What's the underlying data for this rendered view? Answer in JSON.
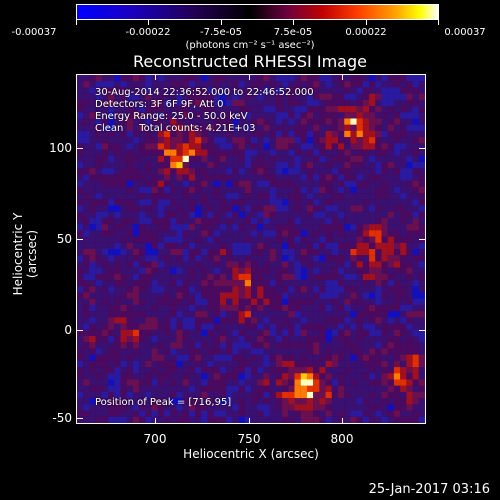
{
  "colorbar": {
    "tick_labels": [
      "-0.00037",
      "-0.00022",
      "-7.5e-05",
      "7.5e-05",
      "0.00022",
      "0.00037"
    ],
    "units": "(photons cm⁻² s⁻¹ asec⁻²)"
  },
  "title": "Reconstructed RHESSI Image",
  "info": {
    "line1": "30-Aug-2014 22:36:52.000 to 22:46:52.000",
    "line2": "Detectors: 3F 6F 9F, Att 0",
    "line3": "Energy Range: 25.0 - 50.0 keV",
    "line4": "Clean     Total counts: 4.21E+03",
    "peak": "Position of Peak = [716,95]"
  },
  "axes": {
    "xlabel": "Heliocentric X (arcsec)",
    "ylabel": "Heliocentric Y (arcsec)",
    "xticks": [
      "700",
      "750",
      "800"
    ],
    "yticks": [
      "100",
      "50",
      "0",
      "-50"
    ],
    "xrange": [
      660,
      846
    ],
    "yrange": [
      -52,
      132
    ]
  },
  "timestamp": "25-Jan-2017 03:16"
}
